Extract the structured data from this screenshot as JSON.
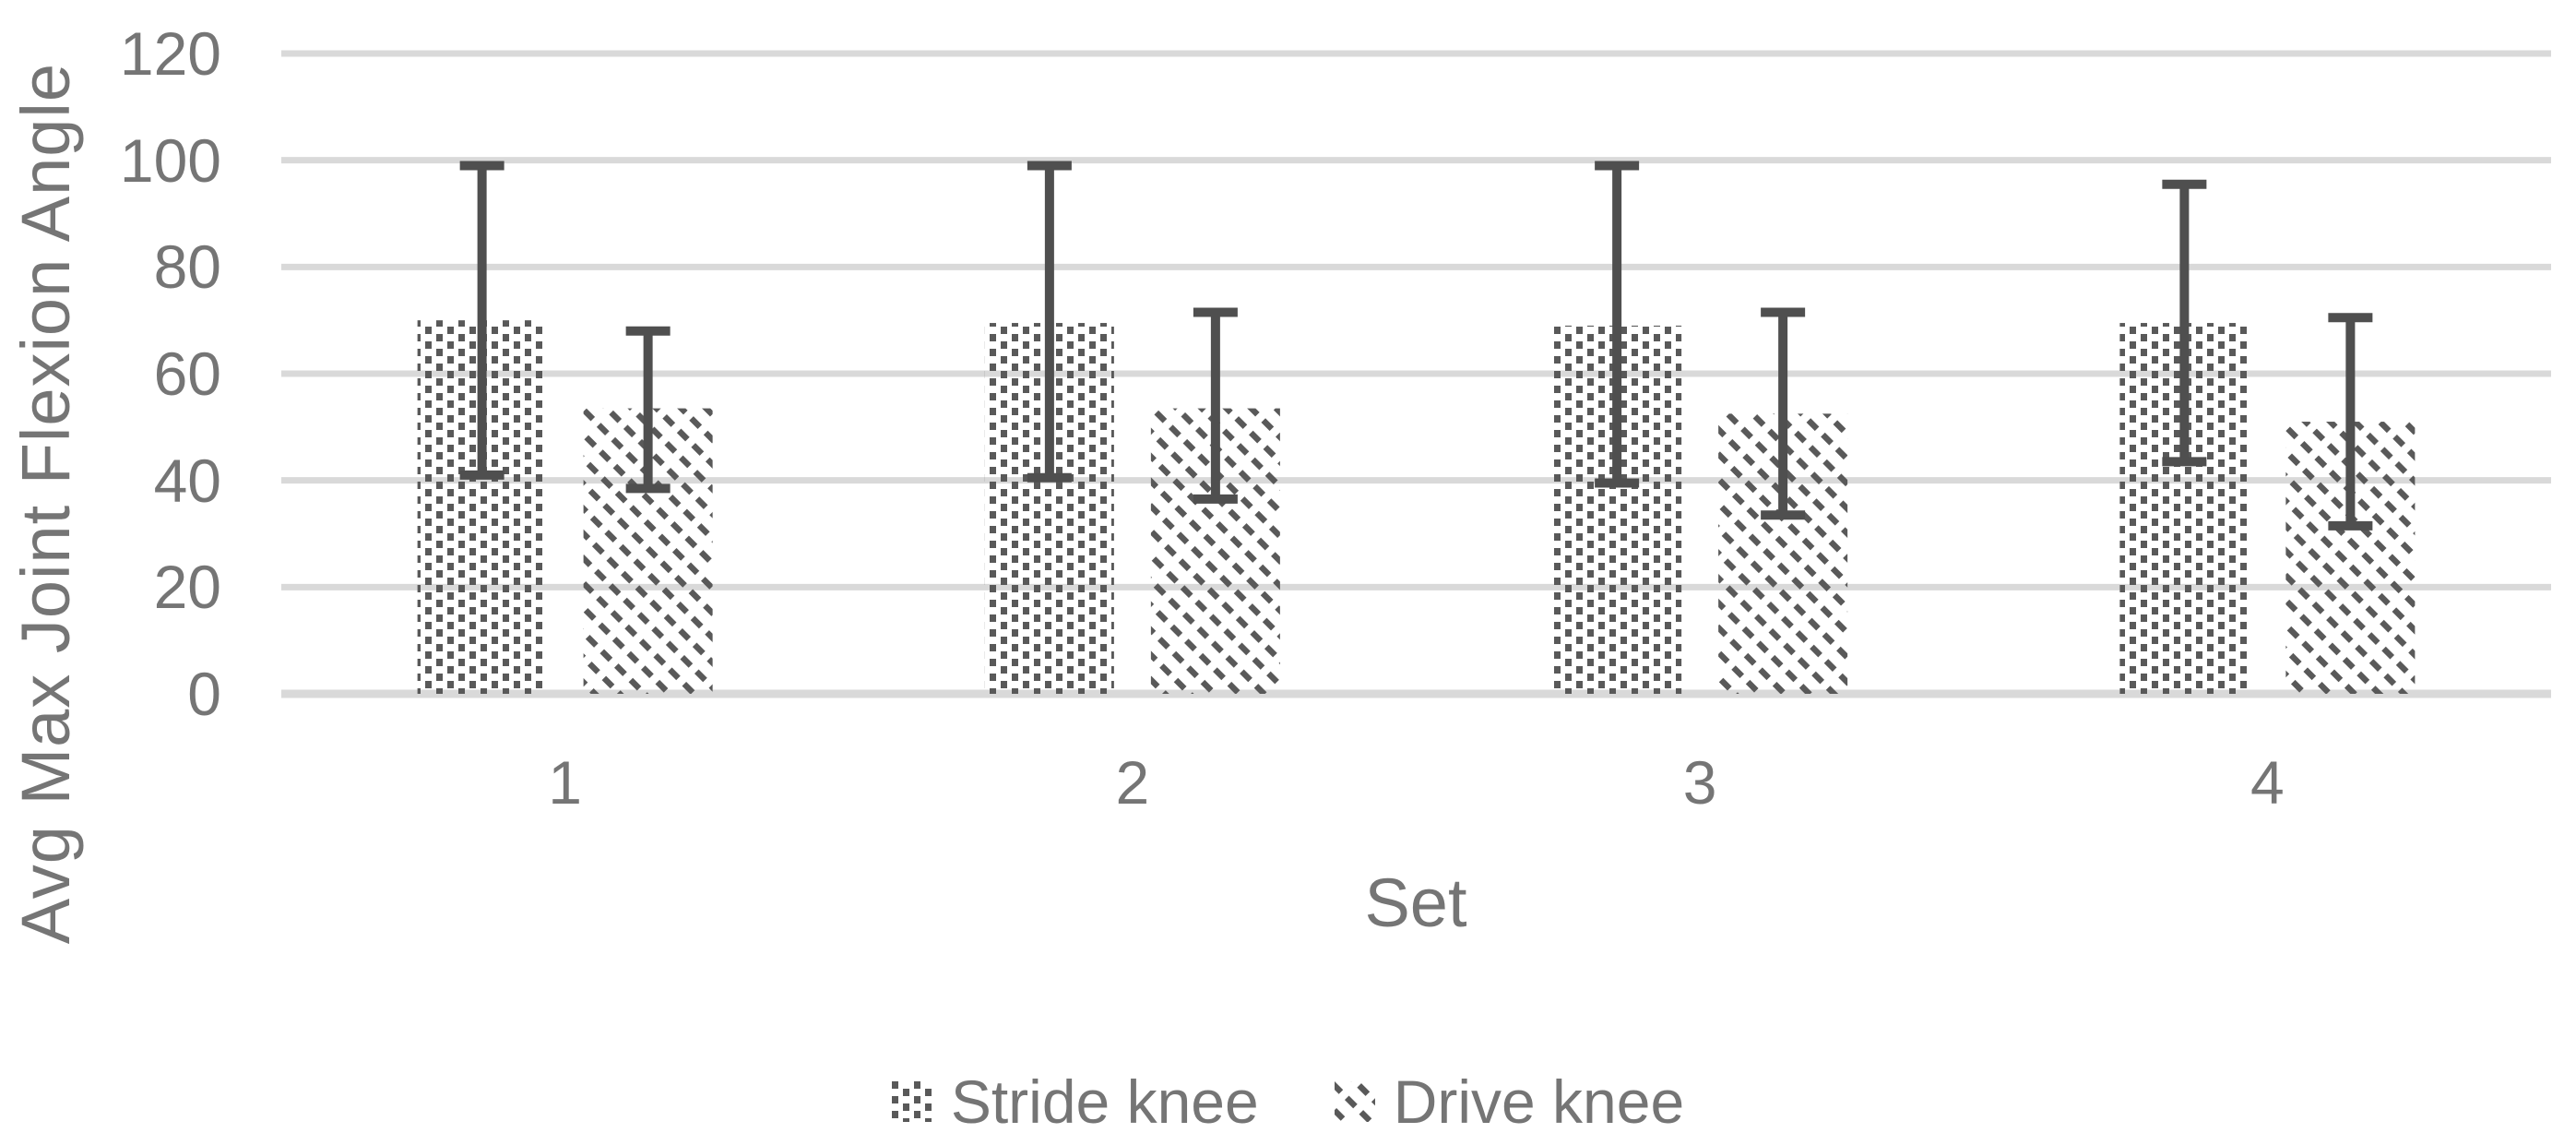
{
  "chart_data": {
    "type": "bar",
    "title": "",
    "categories": [
      "1",
      "2",
      "3",
      "4"
    ],
    "series": [
      {
        "name": "Stride knee",
        "pattern": "dotted-grid",
        "values": [
          70,
          69.5,
          69,
          69.5
        ],
        "error_high": [
          99,
          99,
          99,
          95.5
        ],
        "error_low": [
          41,
          40.5,
          39.5,
          43.5
        ]
      },
      {
        "name": "Drive knee",
        "pattern": "diagonal-hatch",
        "values": [
          53.5,
          53.5,
          52.5,
          51
        ],
        "error_high": [
          68,
          71.5,
          71.5,
          70.5
        ],
        "error_low": [
          38.5,
          36.5,
          33.5,
          31.5
        ]
      }
    ],
    "xlabel": "Set",
    "ylabel": "Avg Max Joint Flexion Angle",
    "ylim": [
      0,
      120
    ],
    "ytick_step": 20,
    "yticks": [
      0,
      20,
      40,
      60,
      80,
      100,
      120
    ],
    "grid": true,
    "legend_position": "bottom",
    "error_bars": "both-directions"
  },
  "colors": {
    "background": "#FFFFFF",
    "pattern_ink": "#595959",
    "error_bar": "#4F4F4F",
    "axis_text": "#757575",
    "gridline": "#D9D9D9",
    "axis_line": "#D9D9D9",
    "bar_fill": "#FFFFFF"
  }
}
